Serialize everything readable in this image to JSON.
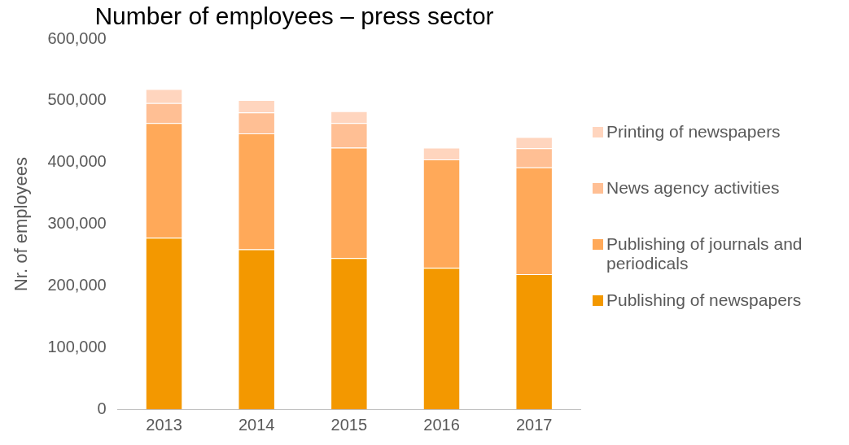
{
  "chart_data": {
    "type": "bar",
    "title": "Number of employees – press sector",
    "ylabel": "Nr. of employees",
    "stacked": true,
    "grid": false,
    "legend": "right",
    "categories": [
      "2013",
      "2014",
      "2015",
      "2016",
      "2017"
    ],
    "ylim": [
      0,
      600000
    ],
    "yticks": [
      {
        "value": 0,
        "label": "0"
      },
      {
        "value": 100000,
        "label": "100,000"
      },
      {
        "value": 200000,
        "label": "200,000"
      },
      {
        "value": 300000,
        "label": "300,000"
      },
      {
        "value": 400000,
        "label": "400,000"
      },
      {
        "value": 500000,
        "label": "500,000"
      },
      {
        "value": 600000,
        "label": "600,000"
      }
    ],
    "series": [
      {
        "name": "Publishing of newspapers",
        "color": "#f39800",
        "values": [
          278000,
          259000,
          245000,
          229000,
          219000
        ]
      },
      {
        "name": "Publishing of journals and periodicals",
        "color": "#ffa959",
        "values": [
          186000,
          188000,
          179000,
          176000,
          173000
        ]
      },
      {
        "name": "News agency activities",
        "color": "#ffbf94",
        "values": [
          32000,
          34000,
          40000,
          null,
          31000
        ]
      },
      {
        "name": "Printing of newspapers",
        "color": "#ffd5be",
        "values": [
          23000,
          20000,
          19000,
          19000,
          18000
        ]
      }
    ]
  }
}
